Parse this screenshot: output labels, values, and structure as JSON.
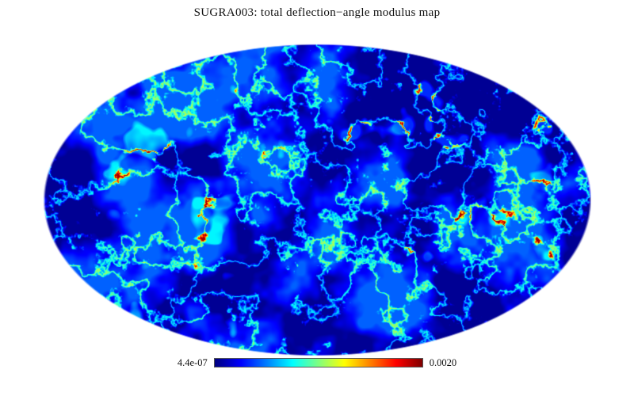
{
  "figure": {
    "title": "SUGRA003: total deflection−angle modulus map",
    "colorbar": {
      "min_label": "4.4e-07",
      "max_label": "0.0020",
      "colormap": "rainbow-jet",
      "color_low": "#000080",
      "color_high": "#800000"
    }
  },
  "chart_data": {
    "type": "heatmap",
    "title": "SUGRA003: total deflection−angle modulus map",
    "projection": "mollweide",
    "quantity": "total deflection-angle modulus",
    "value_min": 4.4e-07,
    "value_max": 0.002,
    "colorbar_ticks": [
      "4.4e-07",
      "0.0020"
    ],
    "colormap": "rainbow-jet",
    "legend_position": "bottom-center",
    "axes": "none",
    "grid": false,
    "description": "All-sky Mollweide-projection map of the total deflection-angle modulus for simulation SUGRA003. The field is filamentary turbulence-like: predominantly dark/medium blue (low values) threaded by cyan and green filaments, with sparse small yellow, orange and a few red peaks. Color scale spans 4.4e-07 (dark blue) to 0.0020 (dark red) with a rainbow (jet) colormap shown in the horizontal colorbar below the map."
  }
}
